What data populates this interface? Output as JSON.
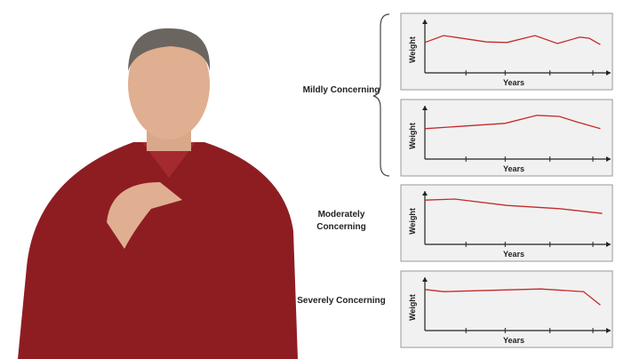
{
  "labels": [
    "Mildly Concerning",
    "Moderately Concerning",
    "Severely Concerning"
  ],
  "chart_data": [
    {
      "type": "line",
      "xlabel": "Years",
      "ylabel": "Weight",
      "xlim": [
        0,
        10
      ],
      "ylim": [
        0,
        100
      ],
      "color": "#c52a2a",
      "x": [
        0,
        1.0,
        3.3,
        4.4,
        5.9,
        7.1,
        8.3,
        8.8,
        9.4
      ],
      "values": [
        57,
        70,
        58,
        57,
        70,
        55,
        67,
        65,
        53
      ]
    },
    {
      "type": "line",
      "xlabel": "Years",
      "ylabel": "Weight",
      "xlim": [
        0,
        10
      ],
      "ylim": [
        0,
        100
      ],
      "color": "#c52a2a",
      "x": [
        0,
        4.3,
        6.0,
        7.2,
        8.1,
        9.4
      ],
      "values": [
        57,
        67,
        82,
        80,
        70,
        57
      ]
    },
    {
      "type": "line",
      "xlabel": "Years",
      "ylabel": "Weight",
      "xlim": [
        0,
        10
      ],
      "ylim": [
        0,
        100
      ],
      "color": "#c52a2a",
      "x": [
        0,
        1.6,
        4.4,
        7.2,
        9.5
      ],
      "values": [
        83,
        85,
        73,
        67,
        58
      ]
    },
    {
      "type": "line",
      "xlabel": "Years",
      "ylabel": "Weight",
      "xlim": [
        0,
        10
      ],
      "ylim": [
        0,
        100
      ],
      "color": "#c52a2a",
      "x": [
        0,
        1.0,
        6.2,
        8.5,
        9.4
      ],
      "values": [
        77,
        73,
        78,
        73,
        48
      ]
    }
  ]
}
